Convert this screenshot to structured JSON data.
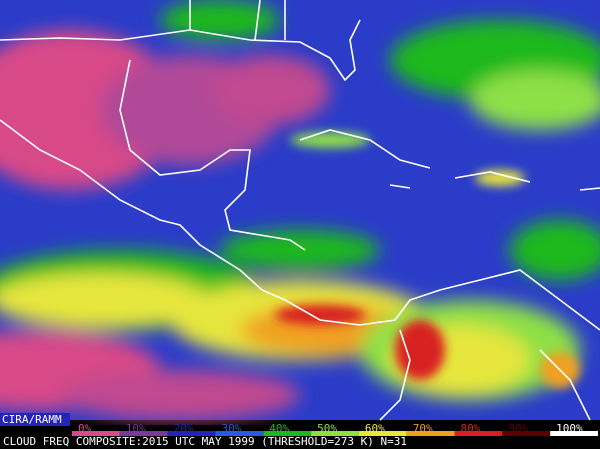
{
  "credit": "CIRA/RAMM",
  "legend": [
    {
      "label": "0%",
      "color": "#d84a88"
    },
    {
      "label": "10%",
      "color": "#7a3a9c"
    },
    {
      "label": "20%",
      "color": "#2424b8"
    },
    {
      "label": "30%",
      "color": "#2a5ae0"
    },
    {
      "label": "40%",
      "color": "#1eb81e"
    },
    {
      "label": "50%",
      "color": "#8ee046"
    },
    {
      "label": "60%",
      "color": "#e6e63c"
    },
    {
      "label": "70%",
      "color": "#f0a020"
    },
    {
      "label": "80%",
      "color": "#d82020"
    },
    {
      "label": "90%",
      "color": "#5a0000"
    },
    {
      "label": "100%",
      "color": "#ffffff"
    }
  ],
  "caption": "CLOUD FREQ COMPOSITE:2015 UTC MAY 1999 (THRESHOLD=273 K) N=31"
}
